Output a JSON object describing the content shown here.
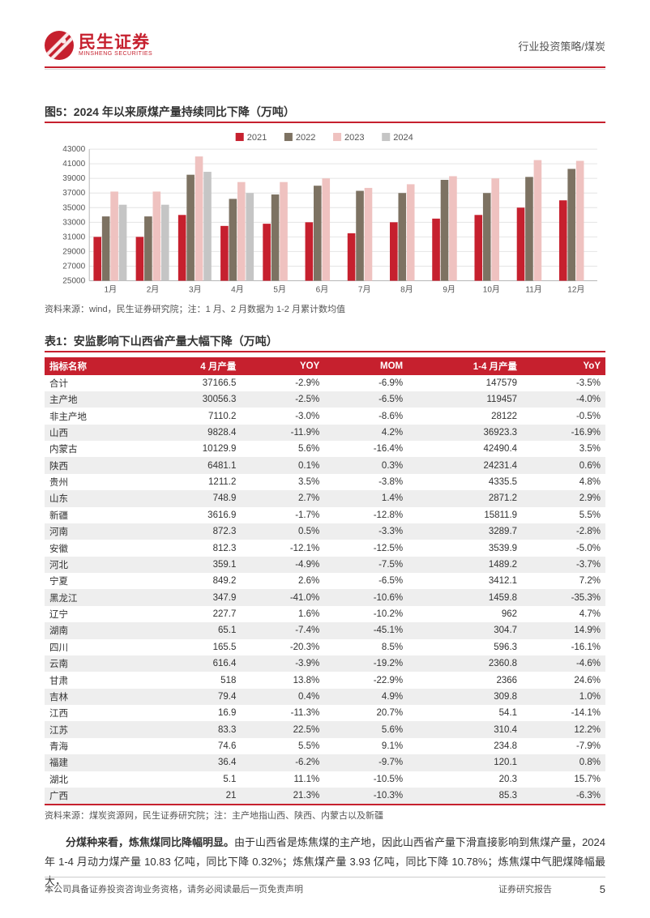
{
  "header": {
    "logo_cn": "民生证券",
    "logo_en": "MINSHENG SECURITIES",
    "category": "行业投资策略/煤炭"
  },
  "figure": {
    "title": "图5：2024 年以来原煤产量持续同比下降（万吨）",
    "source": "资料来源：wind，民生证券研究院；注：1 月、2 月数据为 1-2 月累计数均值",
    "chart": {
      "type": "bar",
      "legend": [
        "2021",
        "2022",
        "2023",
        "2024"
      ],
      "legend_colors": [
        "#c6202e",
        "#7d7262",
        "#efc2c0",
        "#c5c5c5"
      ],
      "categories": [
        "1月",
        "2月",
        "3月",
        "4月",
        "5月",
        "6月",
        "7月",
        "8月",
        "9月",
        "10月",
        "11月",
        "12月"
      ],
      "ylim": [
        25000,
        43000
      ],
      "ytick_step": 2000,
      "series": {
        "2021": [
          31000,
          31000,
          34000,
          32500,
          32800,
          33000,
          31500,
          33000,
          33500,
          34000,
          35000,
          36000
        ],
        "2022": [
          33800,
          33800,
          39500,
          36200,
          36800,
          38000,
          37300,
          37000,
          38800,
          37000,
          39200,
          40300
        ],
        "2023": [
          37200,
          37200,
          42000,
          38500,
          38500,
          39000,
          37700,
          38200,
          39300,
          39000,
          41500,
          41400
        ],
        "2024": [
          35400,
          35400,
          39900,
          37000,
          null,
          null,
          null,
          null,
          null,
          null,
          null,
          null
        ]
      },
      "bar_gap": 0.2,
      "axis_color": "#b7b7b7",
      "grid_color": "#e4e4e4",
      "label_color": "#555",
      "label_fontsize": 10
    }
  },
  "table": {
    "title": "表1：安监影响下山西省产量大幅下降（万吨）",
    "source": "资料来源：煤炭资源网，民生证券研究院；注：主产地指山西、陕西、内蒙古以及新疆",
    "columns": [
      "指标名称",
      "4 月产量",
      "YOY",
      "MOM",
      "1-4 月产量",
      "YoY"
    ],
    "rows": [
      [
        "合计",
        "37166.5",
        "-2.9%",
        "-6.9%",
        "147579",
        "-3.5%"
      ],
      [
        "主产地",
        "30056.3",
        "-2.5%",
        "-6.5%",
        "119457",
        "-4.0%"
      ],
      [
        "非主产地",
        "7110.2",
        "-3.0%",
        "-8.6%",
        "28122",
        "-0.5%"
      ],
      [
        "山西",
        "9828.4",
        "-11.9%",
        "4.2%",
        "36923.3",
        "-16.9%"
      ],
      [
        "内蒙古",
        "10129.9",
        "5.6%",
        "-16.4%",
        "42490.4",
        "3.5%"
      ],
      [
        "陕西",
        "6481.1",
        "0.1%",
        "0.3%",
        "24231.4",
        "0.6%"
      ],
      [
        "贵州",
        "1211.2",
        "3.5%",
        "-3.8%",
        "4335.5",
        "4.8%"
      ],
      [
        "山东",
        "748.9",
        "2.7%",
        "1.4%",
        "2871.2",
        "2.9%"
      ],
      [
        "新疆",
        "3616.9",
        "-1.7%",
        "-12.8%",
        "15811.9",
        "5.5%"
      ],
      [
        "河南",
        "872.3",
        "0.5%",
        "-3.3%",
        "3289.7",
        "-2.8%"
      ],
      [
        "安徽",
        "812.3",
        "-12.1%",
        "-12.5%",
        "3539.9",
        "-5.0%"
      ],
      [
        "河北",
        "359.1",
        "-4.9%",
        "-7.5%",
        "1489.2",
        "-3.7%"
      ],
      [
        "宁夏",
        "849.2",
        "2.6%",
        "-6.5%",
        "3412.1",
        "7.2%"
      ],
      [
        "黑龙江",
        "347.9",
        "-41.0%",
        "-10.6%",
        "1459.8",
        "-35.3%"
      ],
      [
        "辽宁",
        "227.7",
        "1.6%",
        "-10.2%",
        "962",
        "4.7%"
      ],
      [
        "湖南",
        "65.1",
        "-7.4%",
        "-45.1%",
        "304.7",
        "14.9%"
      ],
      [
        "四川",
        "165.5",
        "-20.3%",
        "8.5%",
        "596.3",
        "-16.1%"
      ],
      [
        "云南",
        "616.4",
        "-3.9%",
        "-19.2%",
        "2360.8",
        "-4.6%"
      ],
      [
        "甘肃",
        "518",
        "13.8%",
        "-22.9%",
        "2366",
        "24.6%"
      ],
      [
        "吉林",
        "79.4",
        "0.4%",
        "4.9%",
        "309.8",
        "1.0%"
      ],
      [
        "江西",
        "16.9",
        "-11.3%",
        "20.7%",
        "54.1",
        "-14.1%"
      ],
      [
        "江苏",
        "83.3",
        "22.5%",
        "5.6%",
        "310.4",
        "12.2%"
      ],
      [
        "青海",
        "74.6",
        "5.5%",
        "9.1%",
        "234.8",
        "-7.9%"
      ],
      [
        "福建",
        "36.4",
        "-6.2%",
        "-9.7%",
        "120.1",
        "0.8%"
      ],
      [
        "湖北",
        "5.1",
        "11.1%",
        "-10.5%",
        "20.3",
        "15.7%"
      ],
      [
        "广西",
        "21",
        "21.3%",
        "-10.3%",
        "85.3",
        "-6.3%"
      ]
    ]
  },
  "paragraph": {
    "lead": "分煤种来看，炼焦煤同比降幅明显。",
    "body": "由于山西省是炼焦煤的主产地，因此山西省产量下滑直接影响到焦煤产量，2024 年 1-4 月动力煤产量 10.83 亿吨，同比下降 0.32%；炼焦煤产量 3.93 亿吨，同比下降 10.78%；炼焦煤中气肥煤降幅最大，"
  },
  "footer": {
    "left": "本公司具备证券投资咨询业务资格，请务必阅读最后一页免责声明",
    "right": "证券研究报告",
    "page": "5"
  }
}
